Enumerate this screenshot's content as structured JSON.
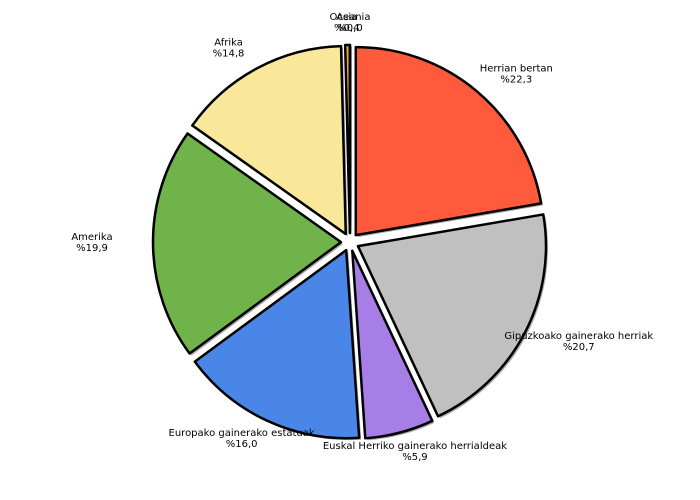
{
  "chart_data": {
    "type": "pie",
    "categories": [
      "Herrian bertan",
      "Gipuzkoako gainerako herriak",
      "Euskal Herriko gainerako herrialdeak",
      "Europako gainerako estatuak",
      "Amerika",
      "Afrika",
      "Asia",
      "Oceania"
    ],
    "values": [
      22.3,
      20.7,
      5.9,
      16.0,
      19.9,
      14.8,
      0.4,
      0.0
    ],
    "value_labels": [
      "%22,3",
      "%20,7",
      "%5,9",
      "%16,0",
      "%19,9",
      "%14,8",
      "%0,4",
      "%0,0"
    ],
    "colors": [
      "#ff5a3c",
      "#c0c0c0",
      "#a67ee6",
      "#4a86e8",
      "#70b34a",
      "#f9e79a",
      "#f4a040",
      "#8ecae6"
    ]
  }
}
